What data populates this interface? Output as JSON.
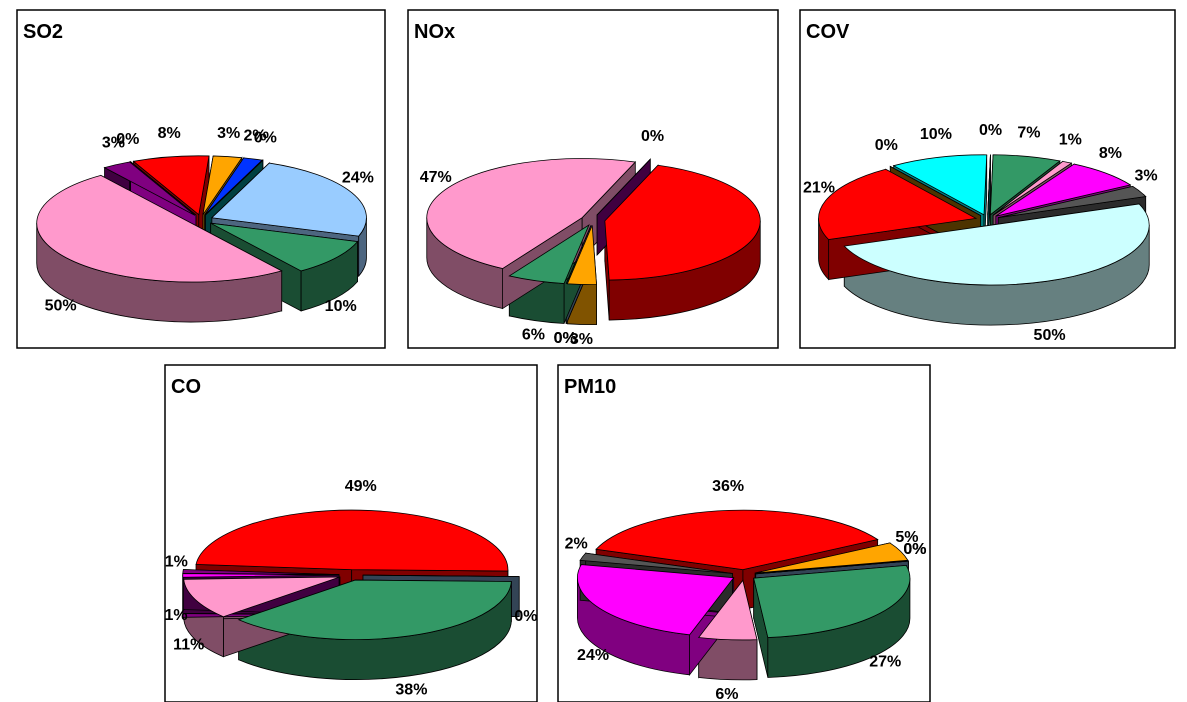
{
  "chart_data": [
    {
      "type": "pie",
      "title": "SO2",
      "values": [
        8,
        3,
        2,
        0,
        24,
        10,
        50,
        3,
        0
      ],
      "value_labels": [
        "8%",
        "3%",
        "2%",
        "0%",
        "24%",
        "10%",
        "50%",
        "3%",
        "0%"
      ],
      "colors": [
        "#ff0000",
        "#ffa500",
        "#0033ff",
        "#008080",
        "#99ccff",
        "#339966",
        "#ff99cc",
        "#800080",
        "#ff00ff"
      ]
    },
    {
      "type": "pie",
      "title": "NOx",
      "values": [
        44,
        3,
        0,
        0,
        6,
        47,
        0
      ],
      "value_labels": [
        null,
        "3%",
        "0%",
        "0%",
        "6%",
        "47%",
        "0%"
      ],
      "colors": [
        "#ff0000",
        "#ffa500",
        "#99ccff",
        "#6688aa",
        "#339966",
        "#ff99cc",
        "#800080"
      ]
    },
    {
      "type": "pie",
      "title": "COV",
      "values": [
        10,
        0,
        7,
        1,
        8,
        3,
        50,
        21,
        0
      ],
      "value_labels": [
        "10%",
        "0%",
        "7%",
        "1%",
        "8%",
        "3%",
        "50%",
        "21%",
        "0%"
      ],
      "colors": [
        "#00ffff",
        "#008080",
        "#339966",
        "#ff99cc",
        "#ff00ff",
        "#555555",
        "#ccffff",
        "#ff0000",
        "#996600"
      ]
    },
    {
      "type": "pie",
      "title": "CO",
      "values": [
        49,
        0,
        38,
        11,
        1,
        1
      ],
      "value_labels": [
        "49%",
        "0%",
        "38%",
        "11%",
        "1%",
        "1%"
      ],
      "colors": [
        "#ff0000",
        "#6688aa",
        "#339966",
        "#ff99cc",
        "#ff00ff",
        "#800080"
      ]
    },
    {
      "type": "pie",
      "title": "PM10",
      "values": [
        36,
        5,
        0,
        0,
        27,
        6,
        24,
        2
      ],
      "value_labels": [
        "36%",
        "5%",
        "0%",
        "0%",
        "27%",
        "6%",
        "24%",
        "2%"
      ],
      "colors": [
        "#ff0000",
        "#ffa500",
        "#99ccff",
        "#6688aa",
        "#339966",
        "#ff99cc",
        "#ff00ff",
        "#555555"
      ]
    }
  ]
}
